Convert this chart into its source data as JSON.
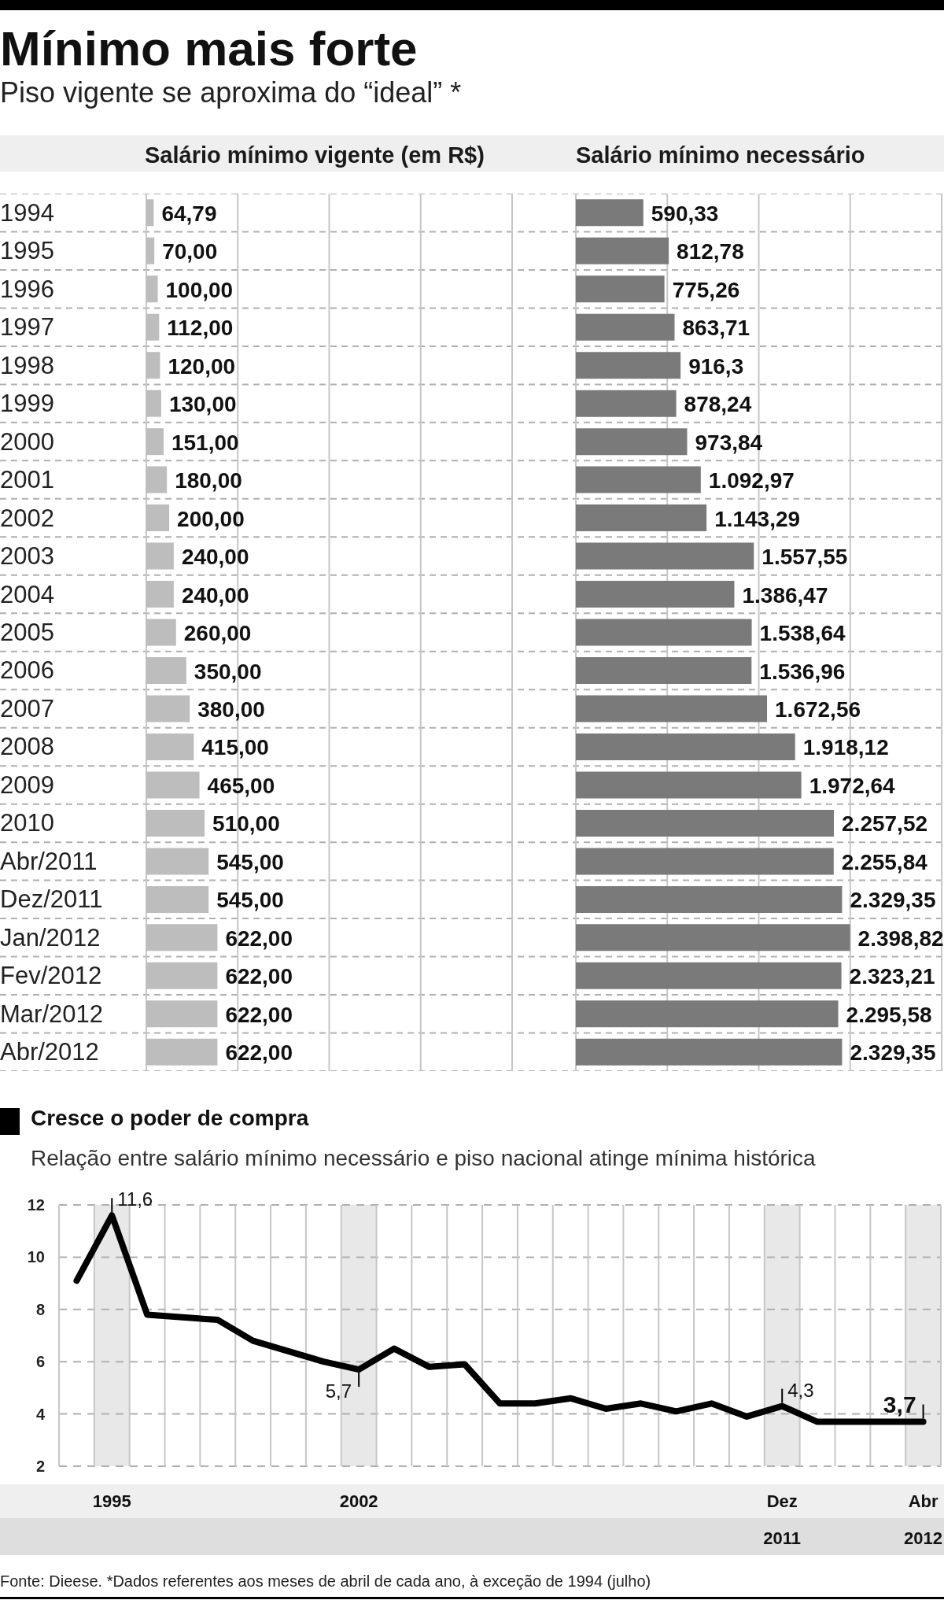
{
  "chart_data": [
    {
      "type": "bar",
      "orientation": "horizontal",
      "title": "Mínimo mais forte",
      "subtitle": "Piso vigente se aproxima do “ideal” *",
      "xlabel": "Salário mínimo vigente (em R$)",
      "categories": [
        "1994",
        "1995",
        "1996",
        "1997",
        "1998",
        "1999",
        "2000",
        "2001",
        "2002",
        "2003",
        "2004",
        "2005",
        "2006",
        "2007",
        "2008",
        "2009",
        "2010",
        "Abr/2011",
        "Dez/2011",
        "Jan/2012",
        "Fev/2012",
        "Mar/2012",
        "Abr/2012"
      ],
      "values": [
        64.79,
        70,
        100,
        112,
        120,
        130,
        151,
        180,
        200,
        240,
        240,
        260,
        350,
        380,
        415,
        465,
        510,
        545,
        545,
        622,
        622,
        622,
        622
      ],
      "value_labels": [
        "64,79",
        "70,00",
        "100,00",
        "112,00",
        "120,00",
        "130,00",
        "151,00",
        "180,00",
        "200,00",
        "240,00",
        "240,00",
        "260,00",
        "350,00",
        "380,00",
        "415,00",
        "465,00",
        "510,00",
        "545,00",
        "545,00",
        "622,00",
        "622,00",
        "622,00",
        "622,00"
      ],
      "color": "#bdbdbd",
      "xlim": [
        0,
        3200
      ],
      "xticks": [
        {
          "value": 0,
          "label": null
        },
        {
          "value": 800,
          "label": null
        },
        {
          "value": 1600,
          "label": null
        },
        {
          "value": 2400,
          "label": null
        },
        {
          "value": 3200,
          "label": null
        }
      ],
      "grid": true,
      "tick_labels": "y"
    },
    {
      "type": "bar",
      "orientation": "horizontal",
      "xlabel": "Salário mínimo necessário",
      "categories": [
        null,
        null,
        null,
        null,
        null,
        null,
        null,
        null,
        null,
        null,
        null,
        null,
        null,
        null,
        null,
        null,
        null,
        null,
        null,
        null,
        null,
        null,
        null
      ],
      "values": [
        590.33,
        812.78,
        775.26,
        863.71,
        916.3,
        878.24,
        973.84,
        1092.97,
        1143.29,
        1557.55,
        1386.47,
        1538.64,
        1536.96,
        1672.56,
        1918.12,
        1972.64,
        2257.52,
        2255.84,
        2329.35,
        2398.82,
        2323.21,
        2295.58,
        2329.35
      ],
      "value_labels": [
        "590,33",
        "812,78",
        "775,26",
        "863,71",
        "916,3",
        "878,24",
        "973,84",
        "1.092,97",
        "1.143,29",
        "1.557,55",
        "1.386,47",
        "1.538,64",
        "1.536,96",
        "1.672,56",
        "1.918,12",
        "1.972,64",
        "2.257,52",
        "2.255,84",
        "2.329,35",
        "2.398,82",
        "2.323,21",
        "2.295,58",
        "2.329,35"
      ],
      "color": "#7a7a7a",
      "xlim": [
        0,
        3200
      ],
      "xticks": [
        {
          "value": 0,
          "label": null
        },
        {
          "value": 800,
          "label": null
        },
        {
          "value": 1600,
          "label": null
        },
        {
          "value": 2400,
          "label": null
        },
        {
          "value": 3200,
          "label": null
        }
      ],
      "grid": true
    },
    {
      "type": "line",
      "title": "Cresce o poder de compra",
      "subtitle": "Relação entre salário mínimo necessário e piso nacional atinge mínima histórica",
      "categories": [
        null,
        "1995",
        null,
        null,
        null,
        null,
        null,
        null,
        "2002",
        null,
        null,
        null,
        null,
        null,
        null,
        null,
        null,
        null,
        null,
        null,
        "Dez 2011",
        null,
        null,
        null,
        "Abr 2012"
      ],
      "values": [
        9.1,
        11.6,
        7.8,
        7.7,
        7.6,
        6.8,
        6.4,
        6,
        5.7,
        6.5,
        5.8,
        5.9,
        4.4,
        4.4,
        4.6,
        4.2,
        4.4,
        4.1,
        4.4,
        3.9,
        4.3,
        3.7,
        3.7,
        3.7,
        3.7
      ],
      "value_labels": [
        null,
        "11,6",
        null,
        null,
        null,
        null,
        null,
        null,
        "5,7",
        null,
        null,
        null,
        null,
        null,
        null,
        null,
        null,
        null,
        null,
        null,
        "4,3",
        null,
        null,
        null,
        "3,7"
      ],
      "color": "#000000",
      "ylim": [
        2,
        12
      ],
      "yticks": [
        2,
        4,
        6,
        8,
        10,
        12
      ],
      "grid": true,
      "marker": "none",
      "line_style": "solid",
      "bands": [
        {
          "axis": "x",
          "from": "1995",
          "to": "1995",
          "color": "#e8e8e8"
        },
        {
          "axis": "x",
          "from": "2002",
          "to": "2002",
          "color": "#e8e8e8"
        },
        {
          "axis": "x",
          "from": "Dez 2011",
          "to": "Dez 2011",
          "color": "#e8e8e8"
        },
        {
          "axis": "x",
          "from": "Abr 2012",
          "to": "Abr 2012",
          "color": "#e8e8e8"
        }
      ],
      "annotations": [
        "Fonte: Dieese. *Dados referentes aos meses de abril de cada ano, à exceção de 1994 (julho)"
      ]
    }
  ]
}
